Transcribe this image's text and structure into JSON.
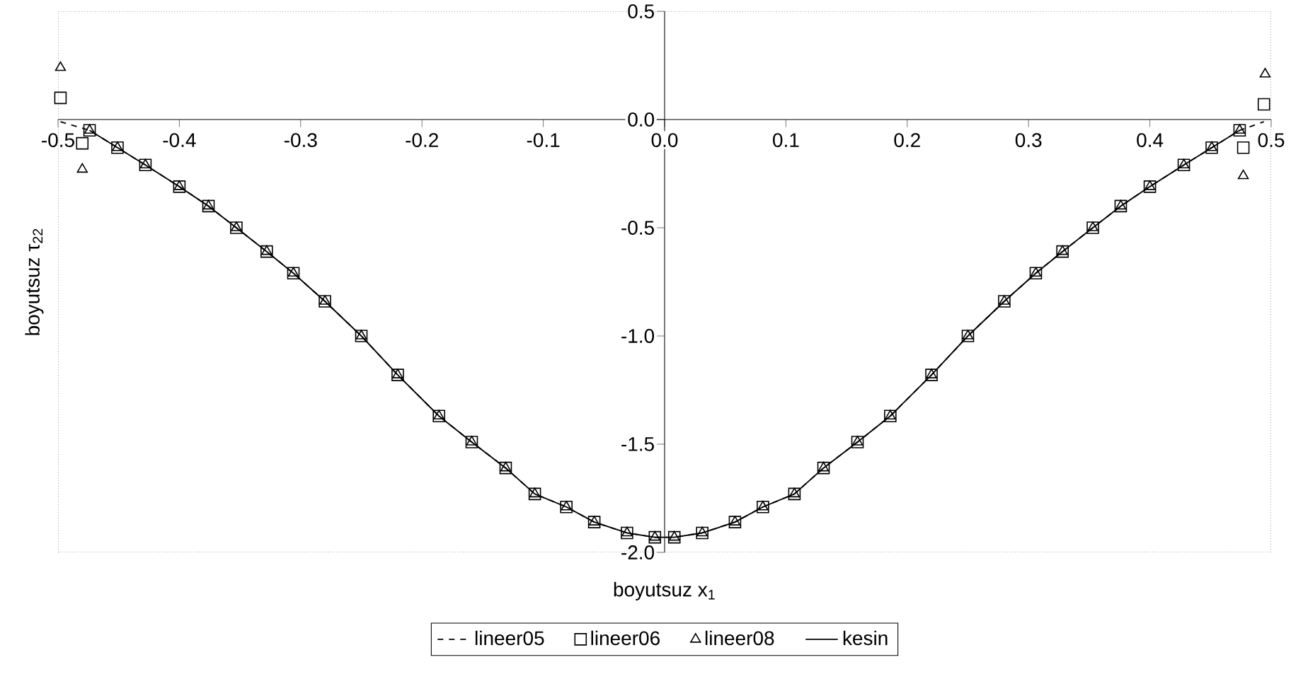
{
  "chart_data": {
    "type": "line",
    "xlabel": "boyutsuz x$_{1}$",
    "ylabel": "boyutsuz τ$_{22}$",
    "xlim": [
      -0.5,
      0.5
    ],
    "ylim": [
      -2.0,
      0.5
    ],
    "xticks": [
      -0.5,
      -0.4,
      -0.3,
      -0.2,
      -0.1,
      {
        "value": 0,
        "label": "0.0"
      },
      0.1,
      0.2,
      0.3,
      0.4,
      0.5
    ],
    "yticks": [
      {
        "value": -2.0,
        "label": "-2.0"
      },
      -1.5,
      {
        "value": -1.0,
        "label": "-1.0"
      },
      -0.5,
      {
        "value": 0,
        "label": "0.0"
      },
      0.5
    ],
    "legend": "bottom",
    "grid": false,
    "series": [
      {
        "name": "lineer05",
        "color": "#000000",
        "type": "line",
        "line_style": "dashed",
        "marker": "none",
        "x": [
          -0.498,
          -0.474,
          -0.451,
          -0.428,
          -0.4,
          -0.376,
          -0.353,
          -0.328,
          -0.306,
          -0.28,
          -0.25,
          -0.22,
          -0.186,
          -0.159,
          -0.131,
          -0.107,
          -0.081,
          -0.058,
          -0.031,
          -0.008,
          0.008,
          0.031,
          0.058,
          0.081,
          0.107,
          0.131,
          0.159,
          0.186,
          0.22,
          0.25,
          0.28,
          0.306,
          0.328,
          0.353,
          0.376,
          0.4,
          0.428,
          0.451,
          0.474,
          0.494
        ],
        "values": [
          -0.01,
          -0.05,
          -0.13,
          -0.21,
          -0.31,
          -0.4,
          -0.5,
          -0.61,
          -0.71,
          -0.84,
          -1.0,
          -1.18,
          -1.37,
          -1.49,
          -1.61,
          -1.73,
          -1.79,
          -1.86,
          -1.91,
          -1.93,
          -1.93,
          -1.91,
          -1.86,
          -1.79,
          -1.73,
          -1.61,
          -1.49,
          -1.37,
          -1.18,
          -1.0,
          -0.84,
          -0.71,
          -0.61,
          -0.5,
          -0.4,
          -0.31,
          -0.21,
          -0.13,
          -0.05,
          -0.01
        ]
      },
      {
        "name": "lineer06",
        "color": "#000000",
        "type": "scatter",
        "marker": "square",
        "x": [
          -0.498,
          -0.48,
          -0.474,
          -0.451,
          -0.428,
          -0.4,
          -0.376,
          -0.353,
          -0.328,
          -0.306,
          -0.28,
          -0.25,
          -0.22,
          -0.186,
          -0.159,
          -0.131,
          -0.107,
          -0.081,
          -0.058,
          -0.031,
          -0.008,
          0.008,
          0.031,
          0.058,
          0.081,
          0.107,
          0.131,
          0.159,
          0.186,
          0.22,
          0.25,
          0.28,
          0.306,
          0.328,
          0.353,
          0.376,
          0.4,
          0.428,
          0.451,
          0.474,
          0.477,
          0.494
        ],
        "values": [
          0.1,
          -0.11,
          -0.05,
          -0.13,
          -0.21,
          -0.31,
          -0.4,
          -0.5,
          -0.61,
          -0.71,
          -0.84,
          -1.0,
          -1.18,
          -1.37,
          -1.49,
          -1.61,
          -1.73,
          -1.79,
          -1.86,
          -1.91,
          -1.93,
          -1.93,
          -1.91,
          -1.86,
          -1.79,
          -1.73,
          -1.61,
          -1.49,
          -1.37,
          -1.18,
          -1.0,
          -0.84,
          -0.71,
          -0.61,
          -0.5,
          -0.4,
          -0.31,
          -0.21,
          -0.13,
          -0.05,
          -0.13,
          0.07
        ]
      },
      {
        "name": "lineer08",
        "color": "#000000",
        "type": "scatter",
        "marker": "triangle",
        "x": [
          -0.498,
          -0.48,
          -0.474,
          -0.451,
          -0.428,
          -0.4,
          -0.376,
          -0.353,
          -0.328,
          -0.306,
          -0.28,
          -0.25,
          -0.22,
          -0.186,
          -0.159,
          -0.131,
          -0.107,
          -0.081,
          -0.058,
          -0.031,
          -0.008,
          0.008,
          0.031,
          0.058,
          0.081,
          0.107,
          0.131,
          0.159,
          0.186,
          0.22,
          0.25,
          0.28,
          0.306,
          0.328,
          0.353,
          0.376,
          0.4,
          0.428,
          0.451,
          0.474,
          0.477,
          0.495
        ],
        "values": [
          0.24,
          -0.23,
          -0.05,
          -0.13,
          -0.21,
          -0.31,
          -0.4,
          -0.5,
          -0.61,
          -0.71,
          -0.84,
          -1.0,
          -1.18,
          -1.37,
          -1.49,
          -1.61,
          -1.73,
          -1.79,
          -1.86,
          -1.91,
          -1.93,
          -1.93,
          -1.91,
          -1.86,
          -1.79,
          -1.73,
          -1.61,
          -1.49,
          -1.37,
          -1.18,
          -1.0,
          -0.84,
          -0.71,
          -0.61,
          -0.5,
          -0.4,
          -0.31,
          -0.21,
          -0.13,
          -0.05,
          -0.26,
          0.21
        ]
      },
      {
        "name": "kesin",
        "color": "#000000",
        "type": "line",
        "line_style": "solid",
        "marker": "none",
        "x": [
          -0.474,
          -0.451,
          -0.428,
          -0.4,
          -0.376,
          -0.353,
          -0.328,
          -0.306,
          -0.28,
          -0.25,
          -0.22,
          -0.186,
          -0.159,
          -0.131,
          -0.107,
          -0.081,
          -0.058,
          -0.031,
          -0.008,
          0.008,
          0.031,
          0.058,
          0.081,
          0.107,
          0.131,
          0.159,
          0.186,
          0.22,
          0.25,
          0.28,
          0.306,
          0.328,
          0.353,
          0.376,
          0.4,
          0.428,
          0.451,
          0.474
        ],
        "values": [
          -0.05,
          -0.13,
          -0.21,
          -0.31,
          -0.4,
          -0.5,
          -0.61,
          -0.71,
          -0.84,
          -1.0,
          -1.18,
          -1.37,
          -1.49,
          -1.61,
          -1.73,
          -1.79,
          -1.86,
          -1.91,
          -1.93,
          -1.93,
          -1.91,
          -1.86,
          -1.79,
          -1.73,
          -1.61,
          -1.49,
          -1.37,
          -1.18,
          -1.0,
          -0.84,
          -0.71,
          -0.61,
          -0.5,
          -0.4,
          -0.31,
          -0.21,
          -0.13,
          -0.05
        ]
      }
    ]
  }
}
